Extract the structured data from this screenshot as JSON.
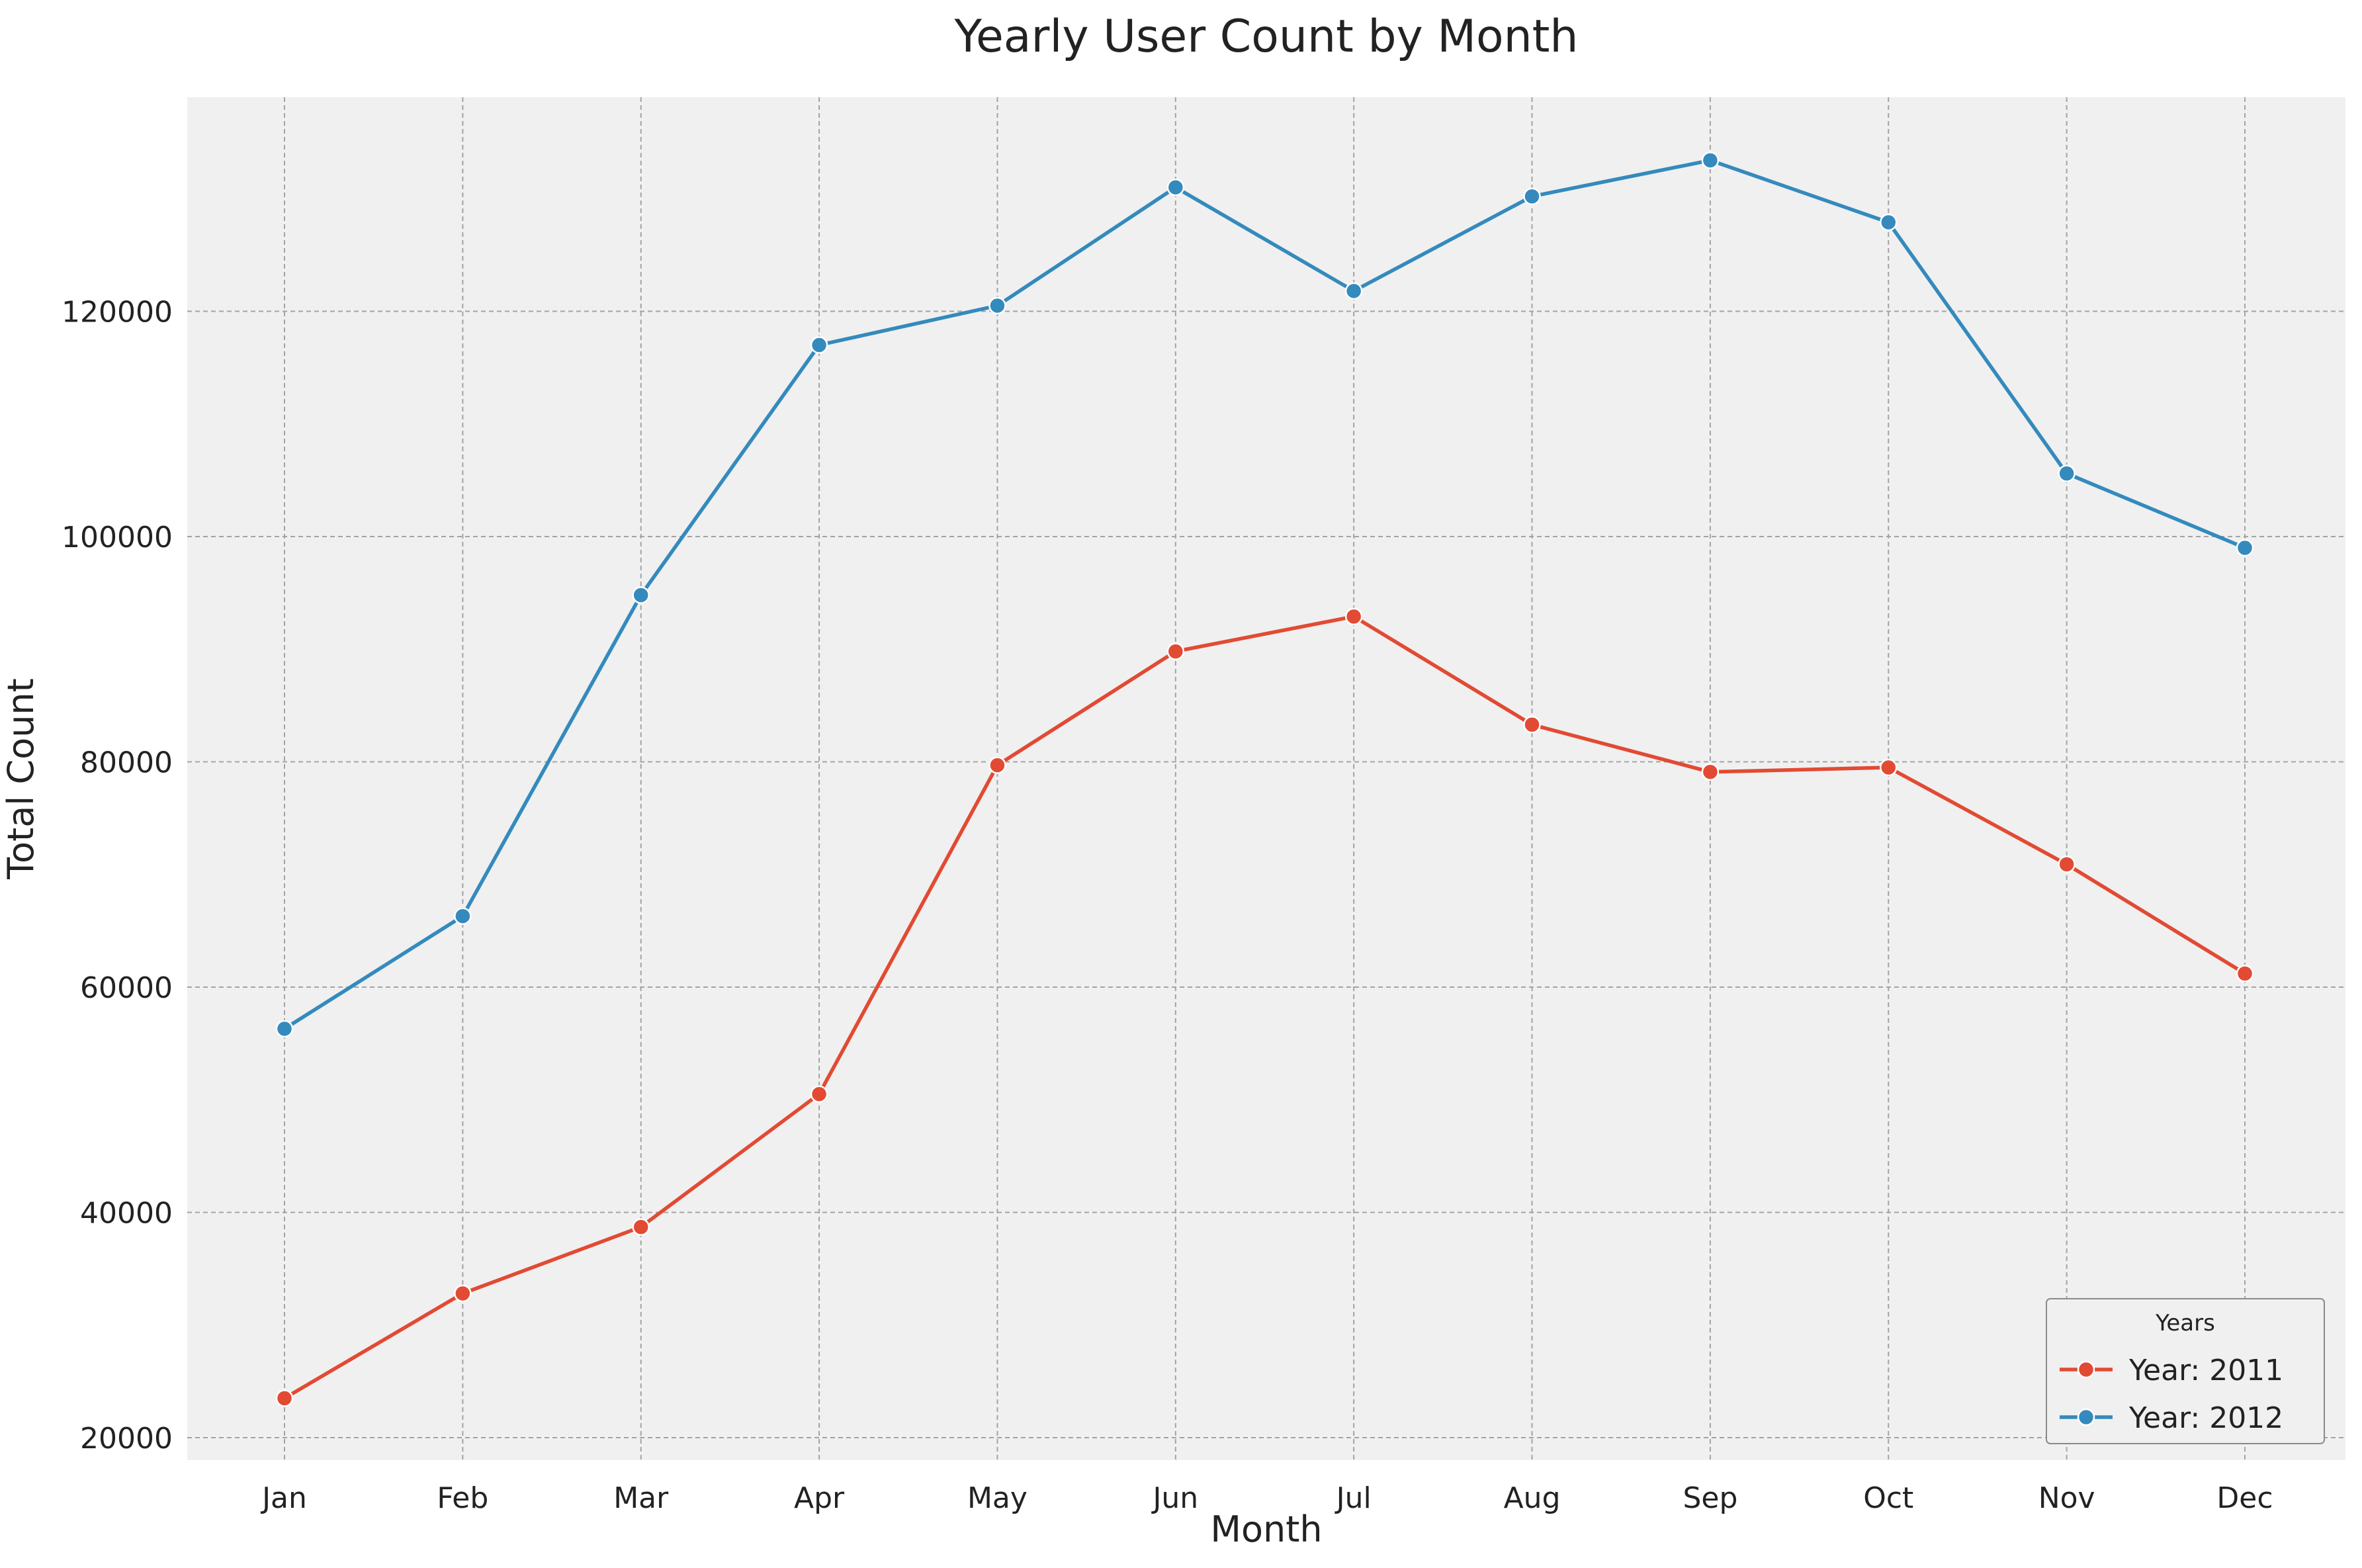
{
  "chart_data": {
    "type": "line",
    "title": "Yearly User Count by Month",
    "xlabel": "Month",
    "ylabel": "Total Count",
    "categories": [
      "Jan",
      "Feb",
      "Mar",
      "Apr",
      "May",
      "Jun",
      "Jul",
      "Aug",
      "Sep",
      "Oct",
      "Nov",
      "Dec"
    ],
    "ylim": [
      18000,
      139000
    ],
    "yticks": [
      "20000",
      "40000",
      "60000",
      "80000",
      "100000",
      "120000"
    ],
    "grid": true,
    "legend": {
      "title": "Years",
      "position": "bottom-right"
    },
    "series": [
      {
        "name": "Year: 2011",
        "color": "#E24A33",
        "values": [
          23500,
          32800,
          38700,
          50500,
          79700,
          89800,
          92900,
          83300,
          79100,
          79500,
          70900,
          61200
        ]
      },
      {
        "name": "Year: 2012",
        "color": "#348ABD",
        "values": [
          56300,
          66300,
          94800,
          117000,
          120500,
          131000,
          121800,
          130200,
          133400,
          127900,
          105600,
          99000
        ]
      }
    ]
  }
}
